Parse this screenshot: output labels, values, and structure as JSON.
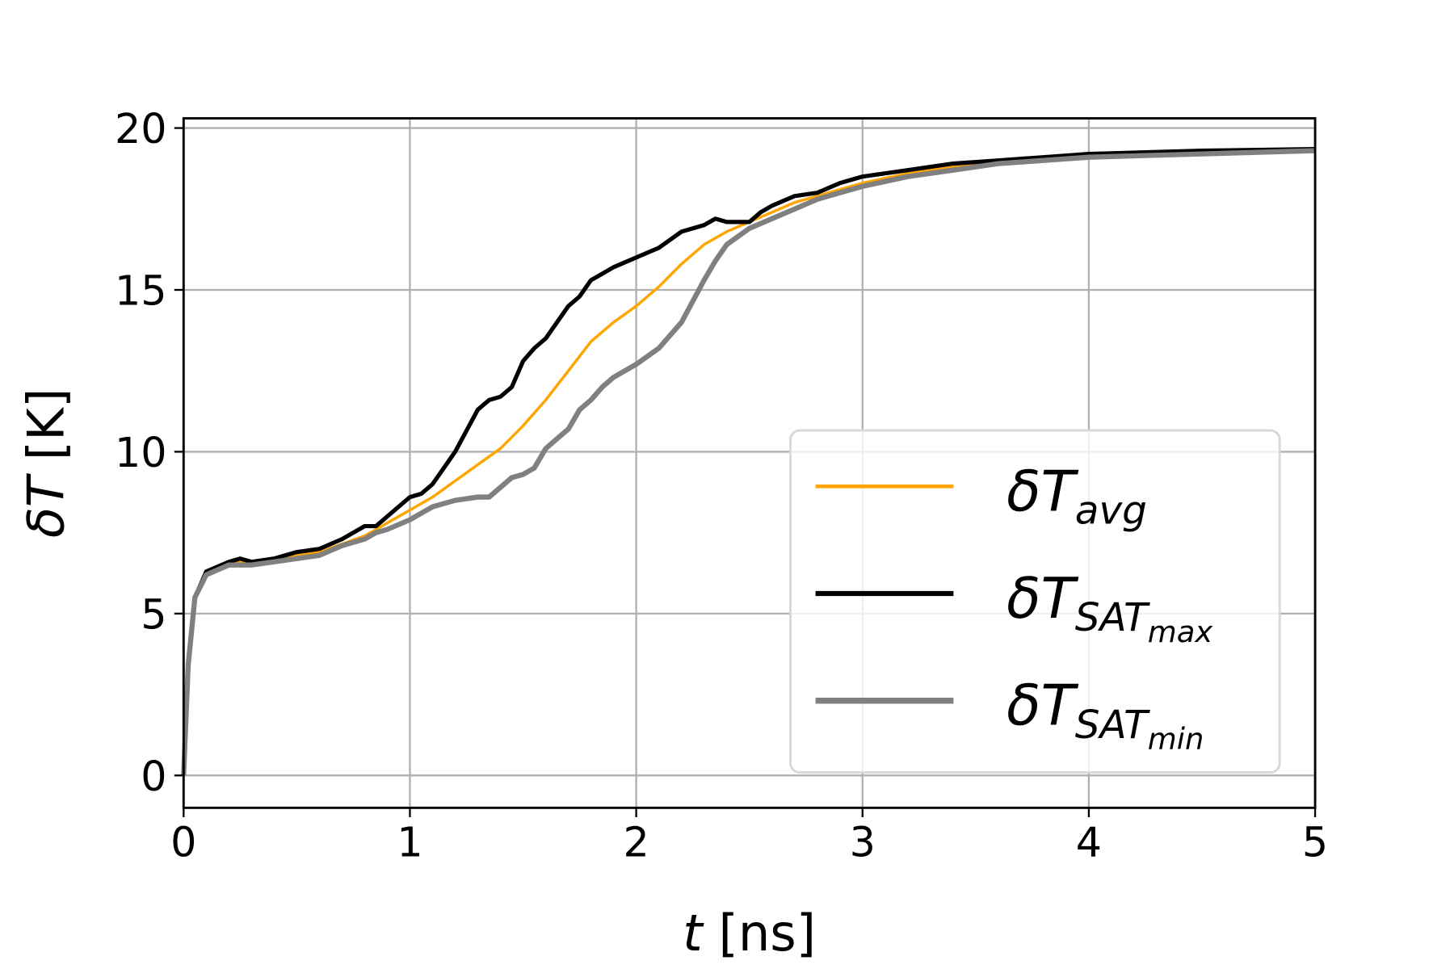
{
  "chart_data": {
    "type": "line",
    "xlabel": {
      "var": "t",
      "unit": " [ns]"
    },
    "ylabel": {
      "var": "δT",
      "unit": " [K]"
    },
    "xlim": [
      0,
      5
    ],
    "ylim": [
      -1,
      20.3
    ],
    "xticks": [
      0,
      1,
      2,
      3,
      4,
      5
    ],
    "yticks": [
      0,
      5,
      10,
      15,
      20
    ],
    "grid": true,
    "legend_placement": "lower-right",
    "series": [
      {
        "name": "δT_avg",
        "label": {
          "main": "δT",
          "sub": "avg",
          "subsub": ""
        },
        "color": "#ffa500",
        "x": [
          0,
          0.02,
          0.05,
          0.1,
          0.2,
          0.4,
          0.6,
          0.8,
          1.0,
          1.1,
          1.2,
          1.3,
          1.4,
          1.5,
          1.6,
          1.7,
          1.8,
          1.9,
          2.0,
          2.1,
          2.2,
          2.3,
          2.4,
          2.5,
          2.6,
          2.7,
          2.8,
          2.9,
          3.0,
          3.2,
          3.4,
          3.6,
          3.8,
          4.0,
          4.5,
          5.0
        ],
        "y": [
          0,
          3.5,
          5.5,
          6.3,
          6.55,
          6.7,
          6.9,
          7.4,
          8.2,
          8.6,
          9.1,
          9.6,
          10.1,
          10.8,
          11.6,
          12.5,
          13.4,
          14.0,
          14.5,
          15.1,
          15.8,
          16.4,
          16.8,
          17.1,
          17.4,
          17.7,
          17.9,
          18.1,
          18.3,
          18.6,
          18.8,
          19.0,
          19.1,
          19.15,
          19.3,
          19.35
        ]
      },
      {
        "name": "δT_SAT_max",
        "label": {
          "main": "δT",
          "sub": "SAT",
          "subsub": "max"
        },
        "color": "#000000",
        "x": [
          0,
          0.02,
          0.05,
          0.1,
          0.2,
          0.25,
          0.3,
          0.4,
          0.5,
          0.6,
          0.7,
          0.8,
          0.85,
          0.9,
          1.0,
          1.05,
          1.1,
          1.2,
          1.3,
          1.35,
          1.4,
          1.45,
          1.5,
          1.55,
          1.6,
          1.65,
          1.7,
          1.75,
          1.8,
          1.85,
          1.9,
          2.0,
          2.1,
          2.2,
          2.3,
          2.35,
          2.4,
          2.5,
          2.55,
          2.6,
          2.7,
          2.8,
          2.9,
          3.0,
          3.2,
          3.4,
          3.6,
          3.8,
          4.0,
          4.5,
          5.0
        ],
        "y": [
          0,
          3.5,
          5.5,
          6.3,
          6.6,
          6.7,
          6.6,
          6.7,
          6.9,
          7.0,
          7.3,
          7.7,
          7.7,
          8.0,
          8.6,
          8.7,
          9.0,
          10.0,
          11.3,
          11.6,
          11.7,
          12.0,
          12.8,
          13.2,
          13.5,
          14.0,
          14.5,
          14.8,
          15.3,
          15.5,
          15.7,
          16.0,
          16.3,
          16.8,
          17.0,
          17.2,
          17.1,
          17.1,
          17.4,
          17.6,
          17.9,
          18.0,
          18.3,
          18.5,
          18.7,
          18.9,
          19.0,
          19.1,
          19.2,
          19.3,
          19.35
        ]
      },
      {
        "name": "δT_SAT_min",
        "label": {
          "main": "δT",
          "sub": "SAT",
          "subsub": "min"
        },
        "color": "#808080",
        "x": [
          0,
          0.02,
          0.05,
          0.1,
          0.2,
          0.3,
          0.4,
          0.5,
          0.6,
          0.7,
          0.8,
          0.85,
          0.9,
          1.0,
          1.1,
          1.2,
          1.3,
          1.35,
          1.4,
          1.45,
          1.5,
          1.55,
          1.6,
          1.65,
          1.7,
          1.75,
          1.8,
          1.85,
          1.9,
          2.0,
          2.1,
          2.2,
          2.3,
          2.35,
          2.4,
          2.5,
          2.6,
          2.7,
          2.8,
          2.9,
          3.0,
          3.2,
          3.4,
          3.6,
          3.8,
          4.0,
          4.5,
          5.0
        ],
        "y": [
          0,
          3.4,
          5.5,
          6.2,
          6.5,
          6.5,
          6.6,
          6.7,
          6.8,
          7.1,
          7.3,
          7.5,
          7.6,
          7.9,
          8.3,
          8.5,
          8.6,
          8.6,
          8.9,
          9.2,
          9.3,
          9.5,
          10.1,
          10.4,
          10.7,
          11.3,
          11.6,
          12.0,
          12.3,
          12.7,
          13.2,
          14.0,
          15.3,
          15.9,
          16.4,
          16.9,
          17.2,
          17.5,
          17.8,
          18.0,
          18.2,
          18.5,
          18.7,
          18.9,
          19.0,
          19.1,
          19.2,
          19.3
        ]
      }
    ]
  }
}
